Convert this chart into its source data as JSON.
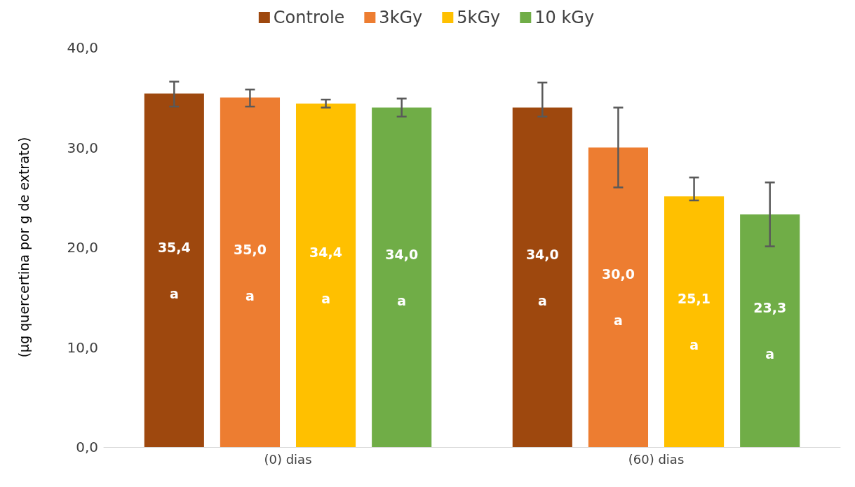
{
  "chart_data": {
    "type": "bar",
    "ylabel": "(µg quercertina por g de extrato)",
    "categories": [
      "(0) dias",
      "(60) dias"
    ],
    "series": [
      {
        "name": "Controle",
        "color": "#9e480e",
        "values": [
          35.4,
          34.0
        ],
        "value_labels": [
          "35,4",
          "34,0"
        ],
        "errors": [
          [
            34.1,
            36.6
          ],
          [
            33.1,
            36.5
          ]
        ]
      },
      {
        "name": "3kGy",
        "color": "#ed7d31",
        "values": [
          35.0,
          30.0
        ],
        "value_labels": [
          "35,0",
          "30,0"
        ],
        "errors": [
          [
            34.1,
            35.8
          ],
          4
        ]
      },
      {
        "name": "5kGy",
        "color": "#ffc000",
        "values": [
          34.4,
          25.1
        ],
        "value_labels": [
          "34,4",
          "25,1"
        ],
        "errors": [
          0.4,
          [
            24.7,
            27.0
          ]
        ]
      },
      {
        "name": "10 kGy",
        "color": "#70ad47",
        "values": [
          34.0,
          23.3
        ],
        "value_labels": [
          "34,0",
          "23,3"
        ],
        "errors": [
          0.9,
          3.2
        ]
      }
    ],
    "annotations": [
      "a",
      "a",
      "a",
      "a",
      "a",
      "a",
      "a",
      "a"
    ],
    "ylim": [
      0,
      40
    ],
    "yticks": [
      {
        "value": 0,
        "label": "0,0"
      },
      {
        "value": 10,
        "label": "10,0"
      },
      {
        "value": 20,
        "label": "20,0"
      },
      {
        "value": 30,
        "label": "30,0"
      },
      {
        "value": 40,
        "label": "40,0"
      }
    ],
    "grid": false,
    "legend": "top"
  }
}
